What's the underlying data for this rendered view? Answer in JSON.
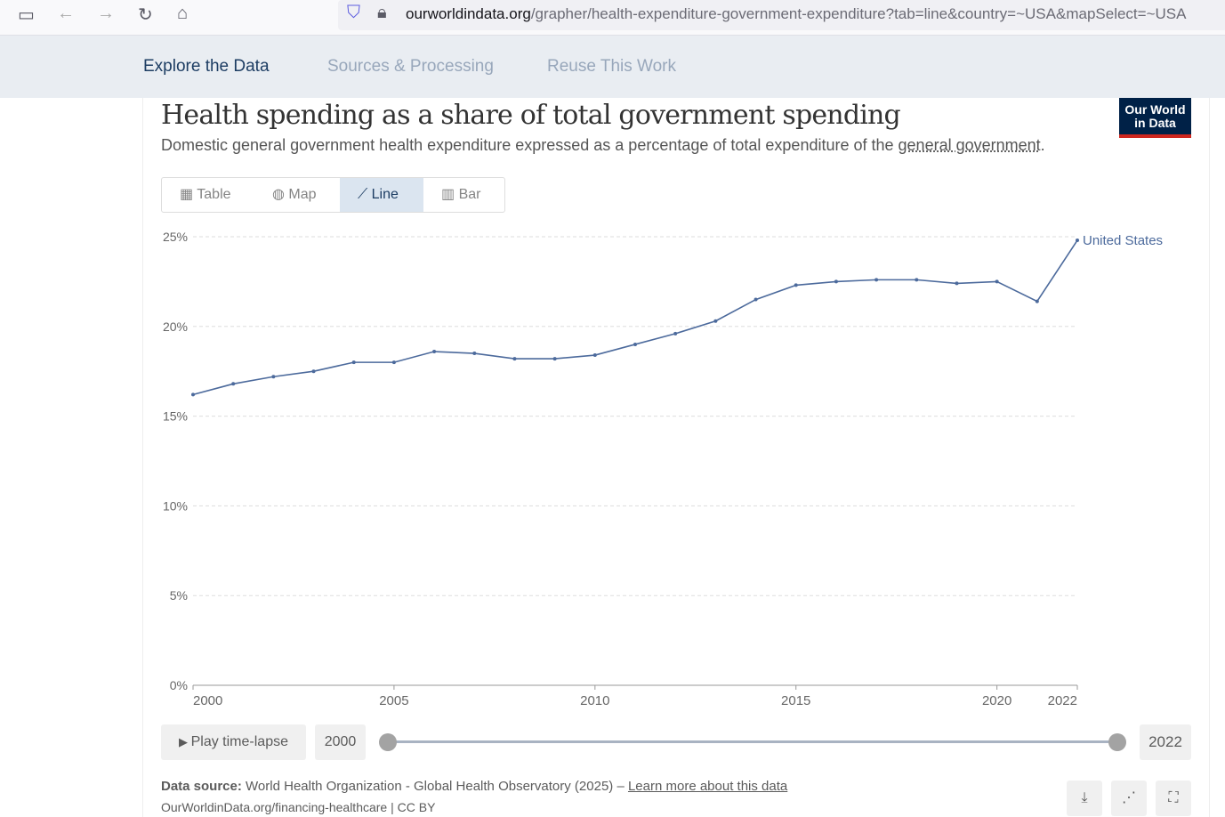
{
  "browser": {
    "url_domain": "ourworldindata.org",
    "url_path": "/grapher/health-expenditure-government-expenditure?tab=line&country=~USA&mapSelect=~USA"
  },
  "nav": {
    "items": [
      "Explore the Data",
      "Sources & Processing",
      "Reuse This Work"
    ]
  },
  "header": {
    "title": "Health spending as a share of total government spending",
    "subtitle": "Domestic general government health expenditure expressed as a percentage of total expenditure of the ",
    "subtitle_link": "general government",
    "subtitle_end": ".",
    "logo": "Our World in Data"
  },
  "tabs": [
    {
      "label": "Table",
      "icon": "table-icon"
    },
    {
      "label": "Map",
      "icon": "globe-icon"
    },
    {
      "label": "Line",
      "icon": "line-chart-icon"
    },
    {
      "label": "Bar",
      "icon": "bar-chart-icon"
    }
  ],
  "chart_data": {
    "type": "line",
    "ylim": [
      0,
      25
    ],
    "yticks": [
      "0%",
      "5%",
      "10%",
      "15%",
      "20%",
      "25%"
    ],
    "ytick_values": [
      0,
      5,
      10,
      15,
      20,
      25
    ],
    "xticks": [
      "2000",
      "2005",
      "2010",
      "2015",
      "2020",
      "2022"
    ],
    "xtick_values": [
      2000,
      2005,
      2010,
      2015,
      2020,
      2022
    ],
    "series": [
      {
        "name": "United States",
        "color": "#4c6a9c",
        "x": [
          2000,
          2001,
          2002,
          2003,
          2004,
          2005,
          2006,
          2007,
          2008,
          2009,
          2010,
          2011,
          2012,
          2013,
          2014,
          2015,
          2016,
          2017,
          2018,
          2019,
          2020,
          2021,
          2022
        ],
        "values": [
          16.2,
          16.8,
          17.2,
          17.5,
          18.0,
          18.0,
          18.6,
          18.5,
          18.2,
          18.2,
          18.4,
          19.0,
          19.6,
          20.3,
          21.5,
          22.3,
          22.5,
          22.6,
          22.6,
          22.4,
          22.5,
          21.4,
          24.8
        ]
      }
    ]
  },
  "timeline": {
    "play_label": "Play time-lapse",
    "start": "2000",
    "end": "2022"
  },
  "footer": {
    "source_label": "Data source:",
    "source_text": " World Health Organization - Global Health Observatory (2025) – ",
    "learn_more": "Learn more about this data",
    "url_line": "OurWorldinData.org/financing-healthcare | CC BY"
  }
}
